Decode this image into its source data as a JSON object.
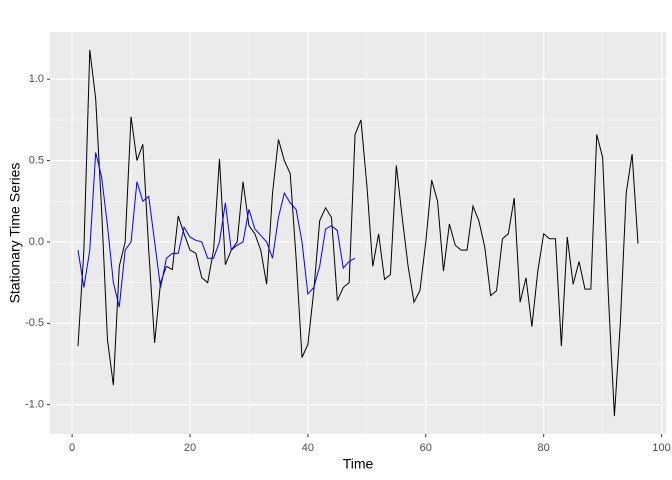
{
  "chart_data": {
    "type": "line",
    "x_label": "Time",
    "y_label": "Stationary Time Series",
    "xlim": [
      -3.75,
      100.75
    ],
    "ylim": [
      -1.18,
      1.29
    ],
    "xticks": [
      0,
      20,
      40,
      60,
      80,
      100
    ],
    "yticks": [
      {
        "value": -1.0,
        "label": "-1.0"
      },
      {
        "value": -0.5,
        "label": "-0.5"
      },
      {
        "value": 0,
        "label": "0.0"
      },
      {
        "value": 0.5,
        "label": "0.5"
      },
      {
        "value": 1.0,
        "label": "1.0"
      }
    ],
    "grid": true,
    "series": [
      {
        "color": "#000000",
        "x": [
          1,
          2,
          3,
          4,
          5,
          6,
          7,
          8,
          9,
          10,
          11,
          12,
          13,
          14,
          15,
          16,
          17,
          18,
          19,
          20,
          21,
          22,
          23,
          24,
          25,
          26,
          27,
          28,
          29,
          30,
          31,
          32,
          33,
          34,
          35,
          36,
          37,
          38,
          39,
          40,
          41,
          42,
          43,
          44,
          45,
          46,
          47,
          48,
          49,
          50,
          51,
          52,
          53,
          54,
          55,
          56,
          57,
          58,
          59,
          60,
          61,
          62,
          63,
          64,
          65,
          66,
          67,
          68,
          69,
          70,
          71,
          72,
          73,
          74,
          75,
          76,
          77,
          78,
          79,
          80,
          81,
          82,
          83,
          84,
          85,
          86,
          87,
          88,
          89,
          90,
          91,
          92,
          93,
          94,
          95,
          96
        ],
        "values": [
          -0.64,
          -0.05,
          1.18,
          0.88,
          0.2,
          -0.6,
          -0.88,
          -0.15,
          0.0,
          0.77,
          0.5,
          0.6,
          -0.05,
          -0.62,
          -0.25,
          -0.15,
          -0.17,
          0.16,
          0.05,
          -0.05,
          -0.07,
          -0.22,
          -0.25,
          -0.05,
          0.51,
          -0.14,
          -0.05,
          0.0,
          0.37,
          0.1,
          0.05,
          -0.05,
          -0.26,
          0.3,
          0.63,
          0.5,
          0.42,
          -0.1,
          -0.71,
          -0.63,
          -0.3,
          0.13,
          0.21,
          0.15,
          -0.36,
          -0.28,
          -0.25,
          0.66,
          0.75,
          0.35,
          -0.15,
          0.05,
          -0.23,
          -0.2,
          0.47,
          0.15,
          -0.15,
          -0.37,
          -0.3,
          0.0,
          0.38,
          0.25,
          -0.18,
          0.11,
          -0.02,
          -0.05,
          -0.05,
          0.22,
          0.13,
          -0.03,
          -0.33,
          -0.3,
          0.02,
          0.05,
          0.27,
          -0.37,
          -0.22,
          -0.52,
          -0.18,
          0.05,
          0.02,
          0.02,
          -0.64,
          0.03,
          -0.26,
          -0.12,
          -0.29,
          -0.29,
          0.66,
          0.52,
          -0.35,
          -1.07,
          -0.5,
          0.3,
          0.54,
          -0.01
        ]
      },
      {
        "color": "#0000ff",
        "x": [
          1,
          2,
          3,
          4,
          5,
          6,
          7,
          8,
          9,
          10,
          11,
          12,
          13,
          14,
          15,
          16,
          17,
          18,
          19,
          20,
          21,
          22,
          23,
          24,
          25,
          26,
          27,
          28,
          29,
          30,
          31,
          32,
          33,
          34,
          35,
          36,
          37,
          38,
          39,
          40,
          41,
          42,
          43,
          44,
          45,
          46,
          47,
          48
        ],
        "values": [
          -0.05,
          -0.28,
          -0.05,
          0.55,
          0.4,
          0.1,
          -0.25,
          -0.4,
          -0.05,
          0.0,
          0.37,
          0.25,
          0.28,
          0.0,
          -0.28,
          -0.1,
          -0.07,
          -0.07,
          0.09,
          0.03,
          0.01,
          0.0,
          -0.1,
          -0.1,
          0.0,
          0.24,
          -0.05,
          -0.02,
          0.0,
          0.2,
          0.08,
          0.04,
          0.0,
          -0.1,
          0.15,
          0.3,
          0.24,
          0.2,
          0.0,
          -0.32,
          -0.28,
          -0.15,
          0.08,
          0.1,
          0.07,
          -0.16,
          -0.12,
          -0.1
        ]
      }
    ]
  }
}
